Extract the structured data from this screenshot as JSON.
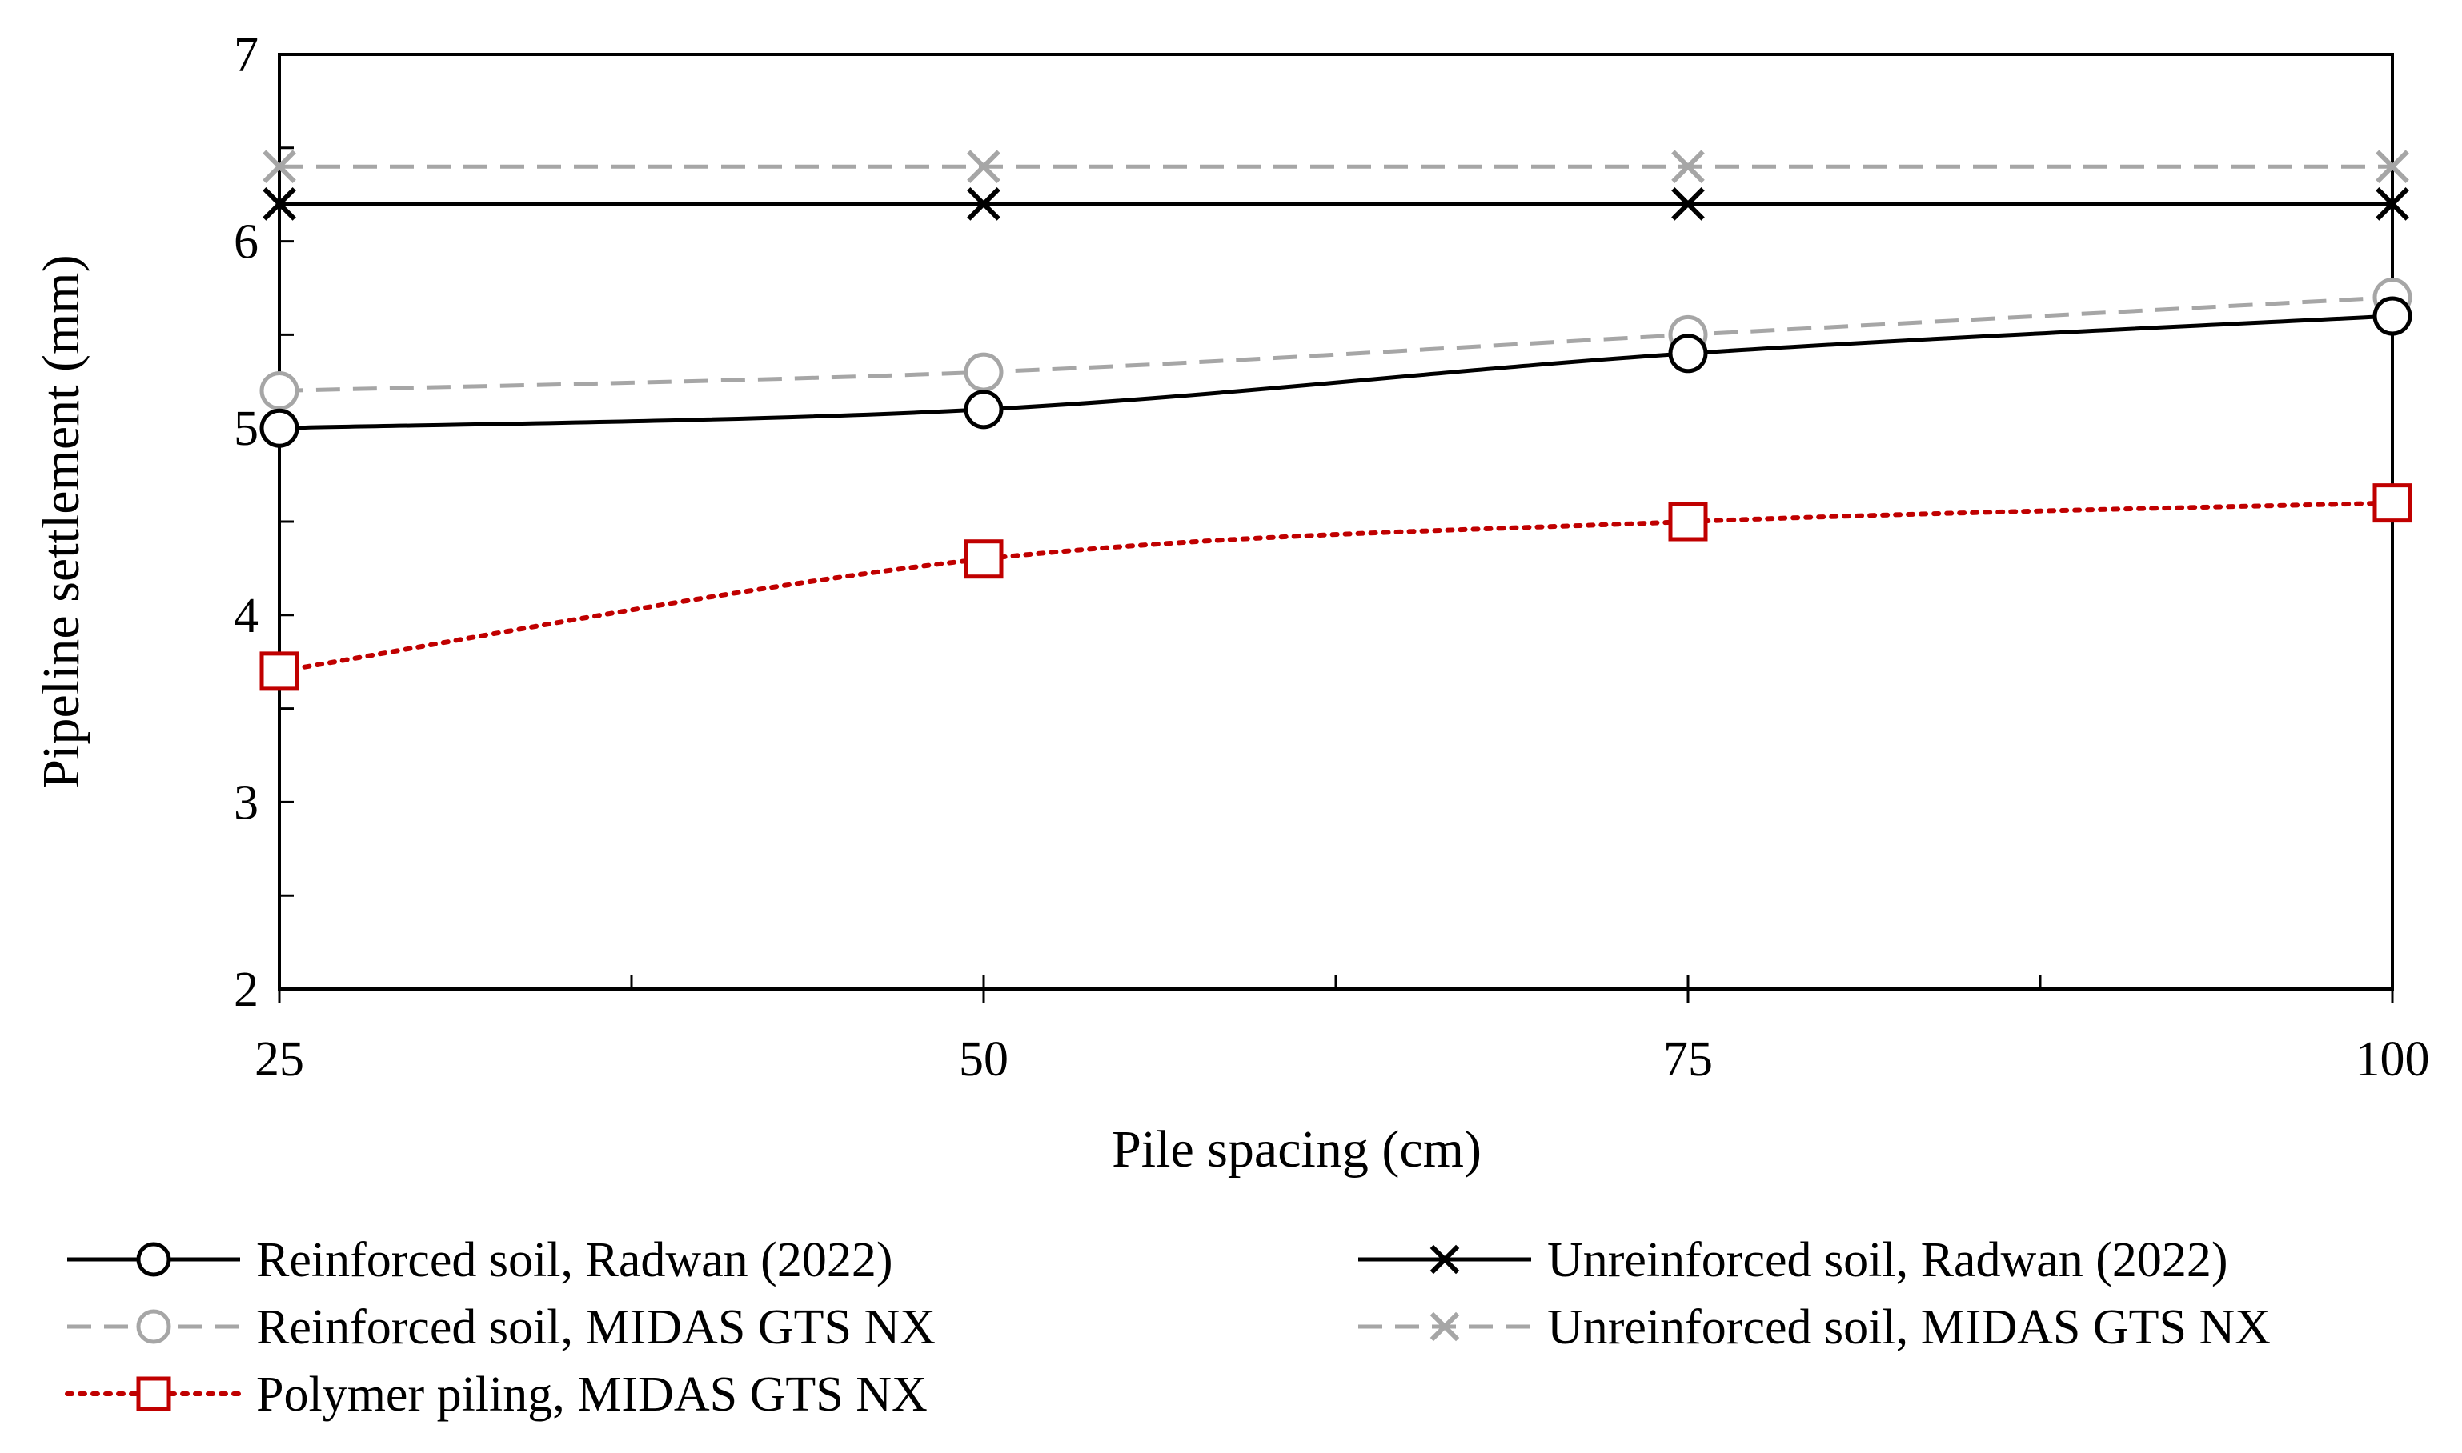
{
  "chart_data": {
    "type": "line",
    "title": "",
    "xlabel": "Pile spacing (cm)",
    "ylabel": "Pipeline settlement (mm)",
    "x": [
      25,
      50,
      75,
      100
    ],
    "xticks": [
      "25",
      "50",
      "75",
      "100"
    ],
    "xlim": [
      25,
      100
    ],
    "yticks": [
      "2",
      "3",
      "4",
      "5",
      "6",
      "7"
    ],
    "ylim": [
      2,
      7
    ],
    "grid": false,
    "legend_position": "bottom",
    "series": [
      {
        "name": "Reinforced soil, Radwan (2022)",
        "values": [
          5.0,
          5.1,
          5.4,
          5.6
        ],
        "color": "#000000",
        "line": "solid",
        "marker": "circle",
        "curve": true
      },
      {
        "name": "Unreinforced soil, Radwan (2022)",
        "values": [
          6.2,
          6.2,
          6.2,
          6.2
        ],
        "color": "#000000",
        "line": "solid",
        "marker": "x",
        "curve": false
      },
      {
        "name": "Reinforced soil, MIDAS GTS NX",
        "values": [
          5.2,
          5.3,
          5.5,
          5.7
        ],
        "color": "#a6a6a6",
        "line": "dashed",
        "marker": "circle",
        "curve": true
      },
      {
        "name": "Unreinforced soil, MIDAS GTS NX",
        "values": [
          6.4,
          6.4,
          6.4,
          6.4
        ],
        "color": "#a6a6a6",
        "line": "dashed",
        "marker": "x",
        "curve": false
      },
      {
        "name": "Polymer piling, MIDAS GTS NX",
        "values": [
          3.7,
          4.3,
          4.5,
          4.6
        ],
        "color": "#c00000",
        "line": "dotted",
        "marker": "square",
        "curve": true
      }
    ]
  }
}
